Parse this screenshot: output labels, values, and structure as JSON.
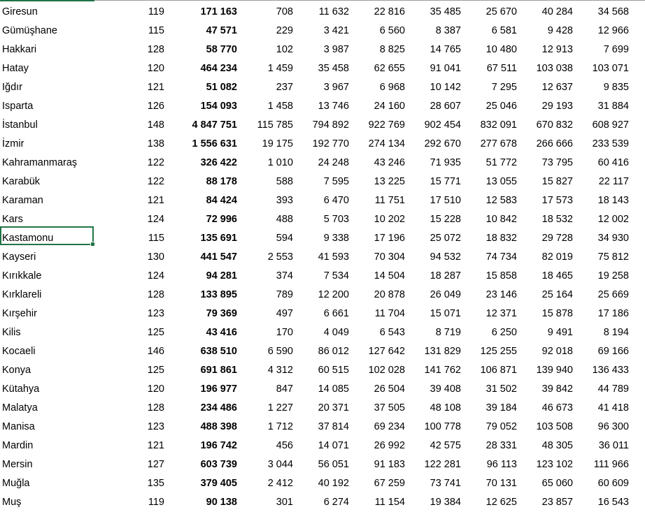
{
  "selected_cell": "Kastamonu",
  "accent_color": "#217346",
  "rows": [
    [
      "Giresun",
      "119",
      "171 163",
      "708",
      "11 632",
      "22 816",
      "35 485",
      "25 670",
      "40 284",
      "34 568"
    ],
    [
      "Gümüşhane",
      "115",
      "47 571",
      "229",
      "3 421",
      "6 560",
      "8 387",
      "6 581",
      "9 428",
      "12 966"
    ],
    [
      "Hakkari",
      "128",
      "58 770",
      "102",
      "3 987",
      "8 825",
      "14 765",
      "10 480",
      "12 913",
      "7 699"
    ],
    [
      "Hatay",
      "120",
      "464 234",
      "1 459",
      "35 458",
      "62 655",
      "91 041",
      "67 511",
      "103 038",
      "103 071"
    ],
    [
      "Iğdır",
      "121",
      "51 082",
      "237",
      "3 967",
      "6 968",
      "10 142",
      "7 295",
      "12 637",
      "9 835"
    ],
    [
      "Isparta",
      "126",
      "154 093",
      "1 458",
      "13 746",
      "24 160",
      "28 607",
      "25 046",
      "29 193",
      "31 884"
    ],
    [
      "İstanbul",
      "148",
      "4 847 751",
      "115 785",
      "794 892",
      "922 769",
      "902 454",
      "832 091",
      "670 832",
      "608 927"
    ],
    [
      "İzmir",
      "138",
      "1 556 631",
      "19 175",
      "192 770",
      "274 134",
      "292 670",
      "277 678",
      "266 666",
      "233 539"
    ],
    [
      "Kahramanmaraş",
      "122",
      "326 422",
      "1 010",
      "24 248",
      "43 246",
      "71 935",
      "51 772",
      "73 795",
      "60 416"
    ],
    [
      "Karabük",
      "122",
      "88 178",
      "588",
      "7 595",
      "13 225",
      "15 771",
      "13 055",
      "15 827",
      "22 117"
    ],
    [
      "Karaman",
      "121",
      "84 424",
      "393",
      "6 470",
      "11 751",
      "17 510",
      "12 583",
      "17 573",
      "18 143"
    ],
    [
      "Kars",
      "124",
      "72 996",
      "488",
      "5 703",
      "10 202",
      "15 228",
      "10 842",
      "18 532",
      "12 002"
    ],
    [
      "Kastamonu",
      "115",
      "135 691",
      "594",
      "9 338",
      "17 196",
      "25 072",
      "18 832",
      "29 728",
      "34 930"
    ],
    [
      "Kayseri",
      "130",
      "441 547",
      "2 553",
      "41 593",
      "70 304",
      "94 532",
      "74 734",
      "82 019",
      "75 812"
    ],
    [
      "Kırıkkale",
      "124",
      "94 281",
      "374",
      "7 534",
      "14 504",
      "18 287",
      "15 858",
      "18 465",
      "19 258"
    ],
    [
      "Kırklareli",
      "128",
      "133 895",
      "789",
      "12 200",
      "20 878",
      "26 049",
      "23 146",
      "25 164",
      "25 669"
    ],
    [
      "Kırşehir",
      "123",
      "79 369",
      "497",
      "6 661",
      "11 704",
      "15 071",
      "12 371",
      "15 878",
      "17 186"
    ],
    [
      "Kilis",
      "125",
      "43 416",
      "170",
      "4 049",
      "6 543",
      "8 719",
      "6 250",
      "9 491",
      "8 194"
    ],
    [
      "Kocaeli",
      "146",
      "638 510",
      "6 590",
      "86 012",
      "127 642",
      "131 829",
      "125 255",
      "92 018",
      "69 166"
    ],
    [
      "Konya",
      "125",
      "691 861",
      "4 312",
      "60 515",
      "102 028",
      "141 762",
      "106 871",
      "139 940",
      "136 433"
    ],
    [
      "Kütahya",
      "120",
      "196 977",
      "847",
      "14 085",
      "26 504",
      "39 408",
      "31 502",
      "39 842",
      "44 789"
    ],
    [
      "Malatya",
      "128",
      "234 486",
      "1 227",
      "20 371",
      "37 505",
      "48 108",
      "39 184",
      "46 673",
      "41 418"
    ],
    [
      "Manisa",
      "123",
      "488 398",
      "1 712",
      "37 814",
      "69 234",
      "100 778",
      "79 052",
      "103 508",
      "96 300"
    ],
    [
      "Mardin",
      "121",
      "196 742",
      "456",
      "14 071",
      "26 992",
      "42 575",
      "28 331",
      "48 305",
      "36 011"
    ],
    [
      "Mersin",
      "127",
      "603 739",
      "3 044",
      "56 051",
      "91 183",
      "122 281",
      "96 113",
      "123 102",
      "111 966"
    ],
    [
      "Muğla",
      "135",
      "379 405",
      "2 412",
      "40 192",
      "67 259",
      "73 741",
      "70 131",
      "65 060",
      "60 609"
    ],
    [
      "Muş",
      "119",
      "90 138",
      "301",
      "6 274",
      "11 154",
      "19 384",
      "12 625",
      "23 857",
      "16 543"
    ]
  ]
}
